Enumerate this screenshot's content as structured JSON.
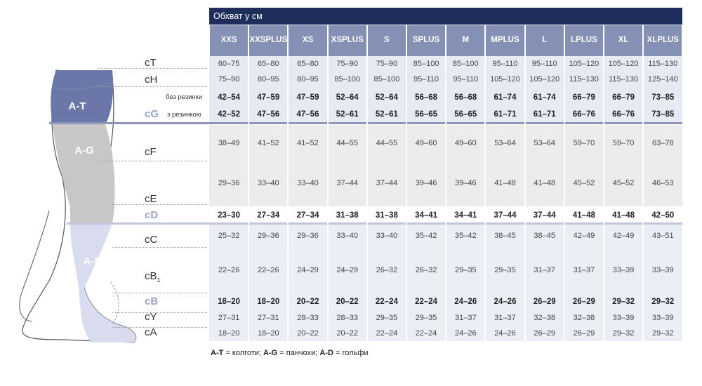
{
  "header": {
    "title": "Обхват у см"
  },
  "sizes": [
    {
      "l1": "XXS",
      "l2": ""
    },
    {
      "l1": "XXS",
      "l2": "PLUS"
    },
    {
      "l1": "XS",
      "l2": ""
    },
    {
      "l1": "XS",
      "l2": "PLUS"
    },
    {
      "l1": "S",
      "l2": ""
    },
    {
      "l1": "S",
      "l2": "PLUS"
    },
    {
      "l1": "M",
      "l2": ""
    },
    {
      "l1": "M",
      "l2": "PLUS"
    },
    {
      "l1": "L",
      "l2": ""
    },
    {
      "l1": "L",
      "l2": "PLUS"
    },
    {
      "l1": "XL",
      "l2": ""
    },
    {
      "l1": "XL",
      "l2": "PLUS"
    }
  ],
  "rows": [
    {
      "label": "cT",
      "values": [
        "60–75",
        "65–80",
        "65–80",
        "75–90",
        "75–90",
        "85–100",
        "85–100",
        "95–110",
        "95–110",
        "105–120",
        "105–120",
        "115–130"
      ]
    },
    {
      "label": "cH",
      "values": [
        "75–90",
        "80–95",
        "80–95",
        "85–100",
        "85–100",
        "95–110",
        "95–110",
        "105–120",
        "105–120",
        "115–130",
        "115–130",
        "125–140"
      ]
    },
    {
      "label": "",
      "note": "без резинки",
      "values": [
        "42–54",
        "47–59",
        "47–59",
        "52–64",
        "52–64",
        "56–68",
        "56–68",
        "61–74",
        "61–74",
        "66–79",
        "66–79",
        "73–85"
      ]
    },
    {
      "label": "cG",
      "note": "з резинкою",
      "values": [
        "42–52",
        "47–56",
        "47–56",
        "52–61",
        "52–61",
        "56–65",
        "56–65",
        "61–71",
        "61–71",
        "66–76",
        "66–76",
        "73–85"
      ]
    },
    {
      "label": "cF",
      "values": [
        "38–49",
        "41–52",
        "41–52",
        "44–55",
        "44–55",
        "49–60",
        "49–60",
        "53–64",
        "53–64",
        "59–70",
        "59–70",
        "63–78"
      ]
    },
    {
      "label": "cE",
      "values": [
        "29–36",
        "33–40",
        "33–40",
        "37–44",
        "37–44",
        "39–46",
        "39–46",
        "41–48",
        "41–48",
        "45–52",
        "45–52",
        "46–53"
      ]
    },
    {
      "label": "cD",
      "values": [
        "23–30",
        "27–34",
        "27–34",
        "31–38",
        "31–38",
        "34–41",
        "34–41",
        "37–44",
        "37–44",
        "41–48",
        "41–48",
        "42–50"
      ]
    },
    {
      "label": "cC",
      "values": [
        "25–32",
        "29–36",
        "29–36",
        "33–40",
        "33–40",
        "35–42",
        "35–42",
        "38–45",
        "38–45",
        "42–49",
        "42–49",
        "43–51"
      ]
    },
    {
      "label": "cB",
      "sub": "1",
      "values": [
        "22–26",
        "22–26",
        "24–29",
        "24–29",
        "26–32",
        "26–32",
        "29–35",
        "29–35",
        "31–37",
        "31–37",
        "33–39",
        "33–39"
      ]
    },
    {
      "label": "cB",
      "values": [
        "18–20",
        "18–20",
        "20–22",
        "20–22",
        "22–24",
        "22–24",
        "24–26",
        "24–26",
        "26–29",
        "26–29",
        "29–32",
        "29–32"
      ]
    },
    {
      "label": "cY",
      "values": [
        "27–31",
        "27–31",
        "28–33",
        "28–33",
        "29–35",
        "29–35",
        "31–37",
        "31–37",
        "32–38",
        "32–38",
        "33–39",
        "33–39"
      ]
    },
    {
      "label": "cA",
      "values": [
        "18–20",
        "18–20",
        "20–22",
        "20–22",
        "22–24",
        "22–24",
        "24–26",
        "24–26",
        "26–29",
        "26–29",
        "29–32",
        "29–32"
      ]
    }
  ],
  "zones": {
    "at": "A-T",
    "ag": "A-G",
    "ad": "A-D"
  },
  "legend": {
    "at_key": "A-T",
    "at_text": " = колготи; ",
    "ag_key": "A-G",
    "ag_text": " = панчохи; ",
    "ad_key": "A-D",
    "ad_text": " = гольфи"
  },
  "colors": {
    "header": "#1f2d5a",
    "size_head": "#8590b5",
    "zone_top": "#6a77a8",
    "zone_mid": "#c4c4c4",
    "zone_low": "#d6daec"
  }
}
